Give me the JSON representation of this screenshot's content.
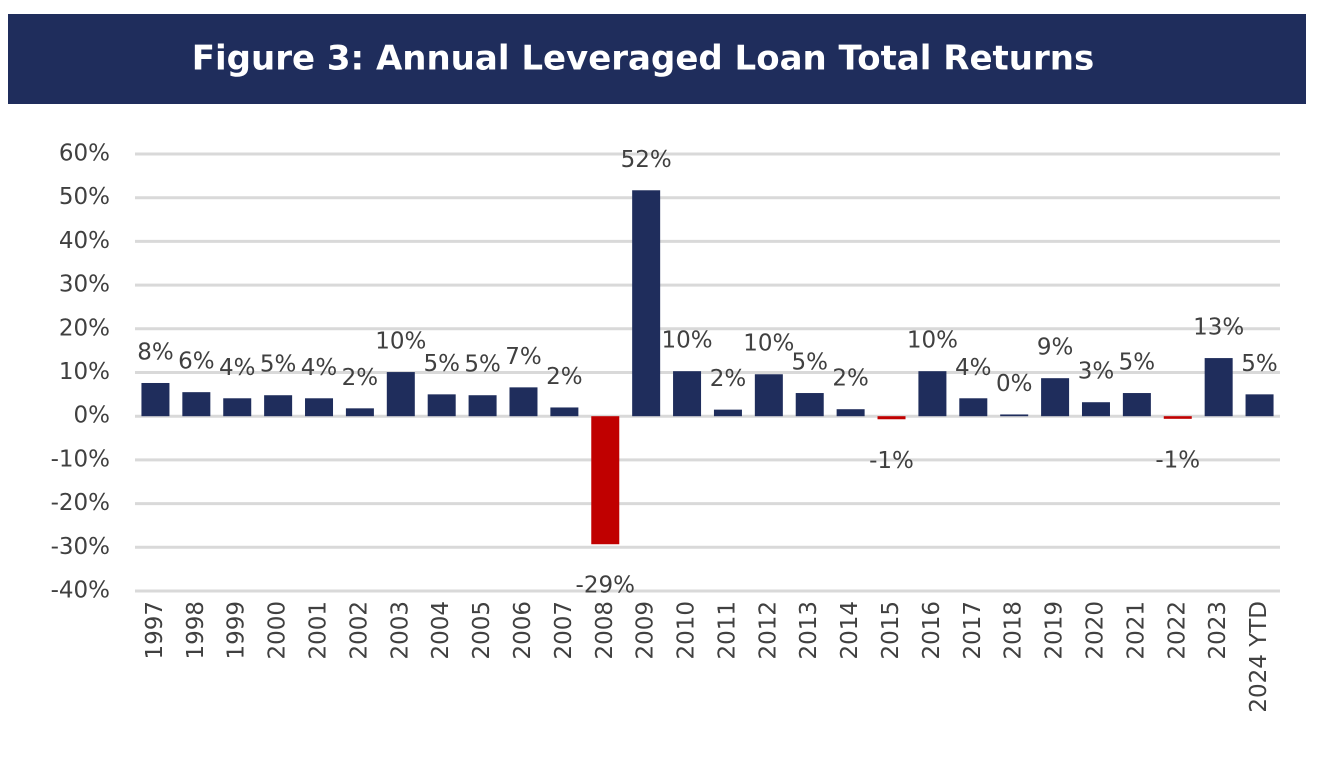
{
  "chart_data": {
    "type": "bar",
    "title": "Figure 3: Annual Leveraged Loan Total Returns",
    "categories": [
      "1997",
      "1998",
      "1999",
      "2000",
      "2001",
      "2002",
      "2003",
      "2004",
      "2005",
      "2006",
      "2007",
      "2008",
      "2009",
      "2010",
      "2011",
      "2012",
      "2013",
      "2014",
      "2015",
      "2016",
      "2017",
      "2018",
      "2019",
      "2020",
      "2021",
      "2022",
      "2023",
      "2024 YTD"
    ],
    "values": [
      7.6,
      5.5,
      4.1,
      4.8,
      4.1,
      1.8,
      10.1,
      5.0,
      4.8,
      6.6,
      2.0,
      -29.3,
      51.7,
      10.3,
      1.5,
      9.6,
      5.3,
      1.6,
      -0.7,
      10.3,
      4.1,
      0.4,
      8.7,
      3.2,
      5.3,
      -0.6,
      13.3,
      5.0
    ],
    "value_labels": [
      "8%",
      "6%",
      "4%",
      "5%",
      "4%",
      "2%",
      "10%",
      "5%",
      "5%",
      "7%",
      "2%",
      "-29%",
      "52%",
      "10%",
      "2%",
      "10%",
      "5%",
      "2%",
      "-1%",
      "10%",
      "4%",
      "0%",
      "9%",
      "3%",
      "5%",
      "-1%",
      "13%",
      "5%"
    ],
    "color": "#1f2d5c",
    "negative_color": "#c00000",
    "ylim": [
      -40,
      60
    ],
    "yticks": [
      {
        "value": -40,
        "label": "-40%"
      },
      {
        "value": -30,
        "label": "-30%"
      },
      {
        "value": -20,
        "label": "-20%"
      },
      {
        "value": -10,
        "label": "-10%"
      },
      {
        "value": 0,
        "label": "0%"
      },
      {
        "value": 10,
        "label": "10%"
      },
      {
        "value": 20,
        "label": "20%"
      },
      {
        "value": 30,
        "label": "30%"
      },
      {
        "value": 40,
        "label": "40%"
      },
      {
        "value": 50,
        "label": "50%"
      },
      {
        "value": 60,
        "label": "60%"
      }
    ],
    "grid": true
  }
}
